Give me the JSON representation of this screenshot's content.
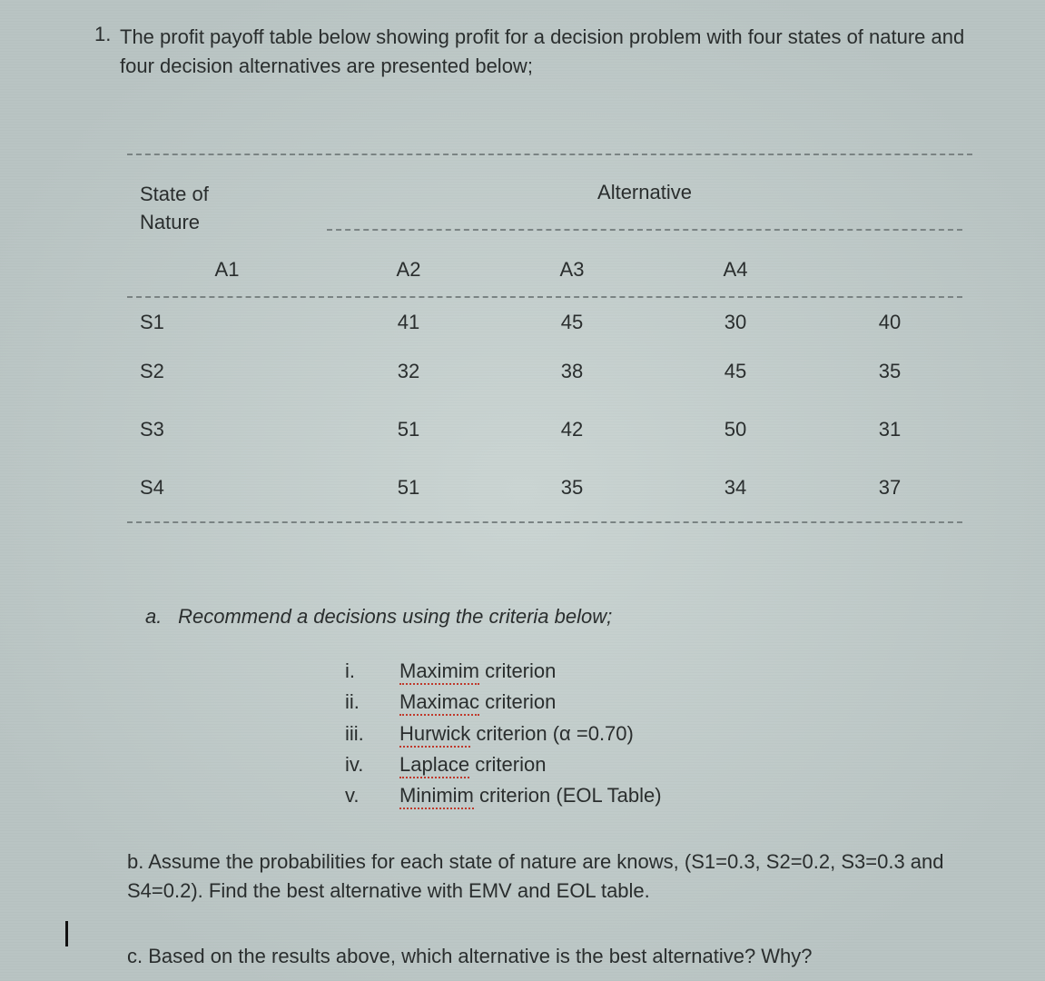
{
  "question": {
    "number": "1.",
    "text": "The profit payoff table below showing profit for a decision problem with four states of nature and four decision alternatives are presented below;"
  },
  "table": {
    "row_header_title_line1": "State of",
    "row_header_title_line2": "Nature",
    "spanner": "Alternative",
    "columns": [
      "A1",
      "A2",
      "A3",
      "A4"
    ],
    "row_labels": [
      "S1",
      "S2",
      "S3",
      "S4"
    ],
    "rows": [
      [
        41,
        45,
        30,
        40
      ],
      [
        32,
        38,
        45,
        35
      ],
      [
        51,
        42,
        50,
        31
      ],
      [
        51,
        35,
        34,
        37
      ]
    ]
  },
  "part_a": {
    "letter": "a.",
    "prompt": "Recommend a decisions using the criteria below;",
    "items": [
      {
        "num": "i.",
        "underlined": "Maximim",
        "rest": " criterion"
      },
      {
        "num": "ii.",
        "underlined": "Maximac",
        "rest": " criterion"
      },
      {
        "num": "iii.",
        "underlined": "Hurwick",
        "rest": " criterion (α =0.70)"
      },
      {
        "num": "iv.",
        "underlined": "Laplace",
        "rest": " criterion"
      },
      {
        "num": "v.",
        "underlined": "Minimim",
        "rest": " criterion (EOL Table)"
      }
    ]
  },
  "part_b": {
    "text": "b. Assume the probabilities for each state of nature are knows, (S1=0.3, S2=0.2, S3=0.3 and S4=0.2). Find the best alternative with EMV and EOL table."
  },
  "part_c": {
    "text": "c. Based on the results above, which alternative is the best alternative? Why?"
  },
  "colors": {
    "background": "#c1cccb",
    "text": "#2a2e2e",
    "dash": "#7b8484",
    "underline": "#c0392b"
  },
  "fontsize_body_pt": 16
}
